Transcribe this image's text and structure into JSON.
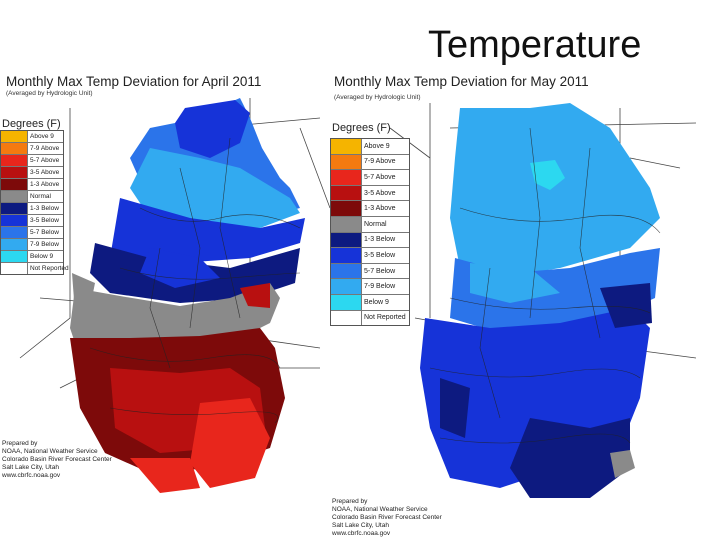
{
  "slide": {
    "title": "Temperature"
  },
  "april": {
    "title": "Monthly Max Temp Deviation for April 2011",
    "subtitle": "(Averaged by Hydrologic Unit)",
    "legend_title": "Degrees (F)",
    "legend": [
      {
        "label": "Above 9",
        "color": "#f5b400"
      },
      {
        "label": "7-9 Above",
        "color": "#f47a10"
      },
      {
        "label": "5-7 Above",
        "color": "#e8261c"
      },
      {
        "label": "3-5 Above",
        "color": "#b81010"
      },
      {
        "label": "1-3 Above",
        "color": "#7d0a0a"
      },
      {
        "label": "Normal",
        "color": "#8a8a8a"
      },
      {
        "label": "1-3 Below",
        "color": "#0d1a80"
      },
      {
        "label": "3-5 Below",
        "color": "#1633d8"
      },
      {
        "label": "5-7 Below",
        "color": "#2b74ea"
      },
      {
        "label": "7-9 Below",
        "color": "#32aaf0"
      },
      {
        "label": "Below 9",
        "color": "#2cd8f0"
      },
      {
        "label": "Not Reported",
        "color": "#ffffff"
      }
    ],
    "credit": [
      "Prepared by",
      "NOAA, National Weather Service",
      "Colorado Basin River Forecast Center",
      "Salt Lake City, Utah",
      "www.cbrfc.noaa.gov"
    ]
  },
  "may": {
    "title": "Monthly Max Temp Deviation for May 2011",
    "subtitle": "(Averaged by Hydrologic Unit)",
    "legend_title": "Degrees (F)",
    "legend": [
      {
        "label": "Above 9",
        "color": "#f5b400"
      },
      {
        "label": "7-9 Above",
        "color": "#f47a10"
      },
      {
        "label": "5-7 Above",
        "color": "#e8261c"
      },
      {
        "label": "3-5 Above",
        "color": "#b81010"
      },
      {
        "label": "1-3 Above",
        "color": "#7d0a0a"
      },
      {
        "label": "Normal",
        "color": "#8a8a8a"
      },
      {
        "label": "1-3 Below",
        "color": "#0d1a80"
      },
      {
        "label": "3-5 Below",
        "color": "#1633d8"
      },
      {
        "label": "5-7 Below",
        "color": "#2b74ea"
      },
      {
        "label": "7-9 Below",
        "color": "#32aaf0"
      },
      {
        "label": "Below 9",
        "color": "#2cd8f0"
      },
      {
        "label": "Not Reported",
        "color": "#ffffff"
      }
    ],
    "credit": [
      "Prepared by",
      "NOAA, National Weather Service",
      "Colorado Basin River Forecast Center",
      "Salt Lake City, Utah",
      "www.cbrfc.noaa.gov"
    ]
  }
}
